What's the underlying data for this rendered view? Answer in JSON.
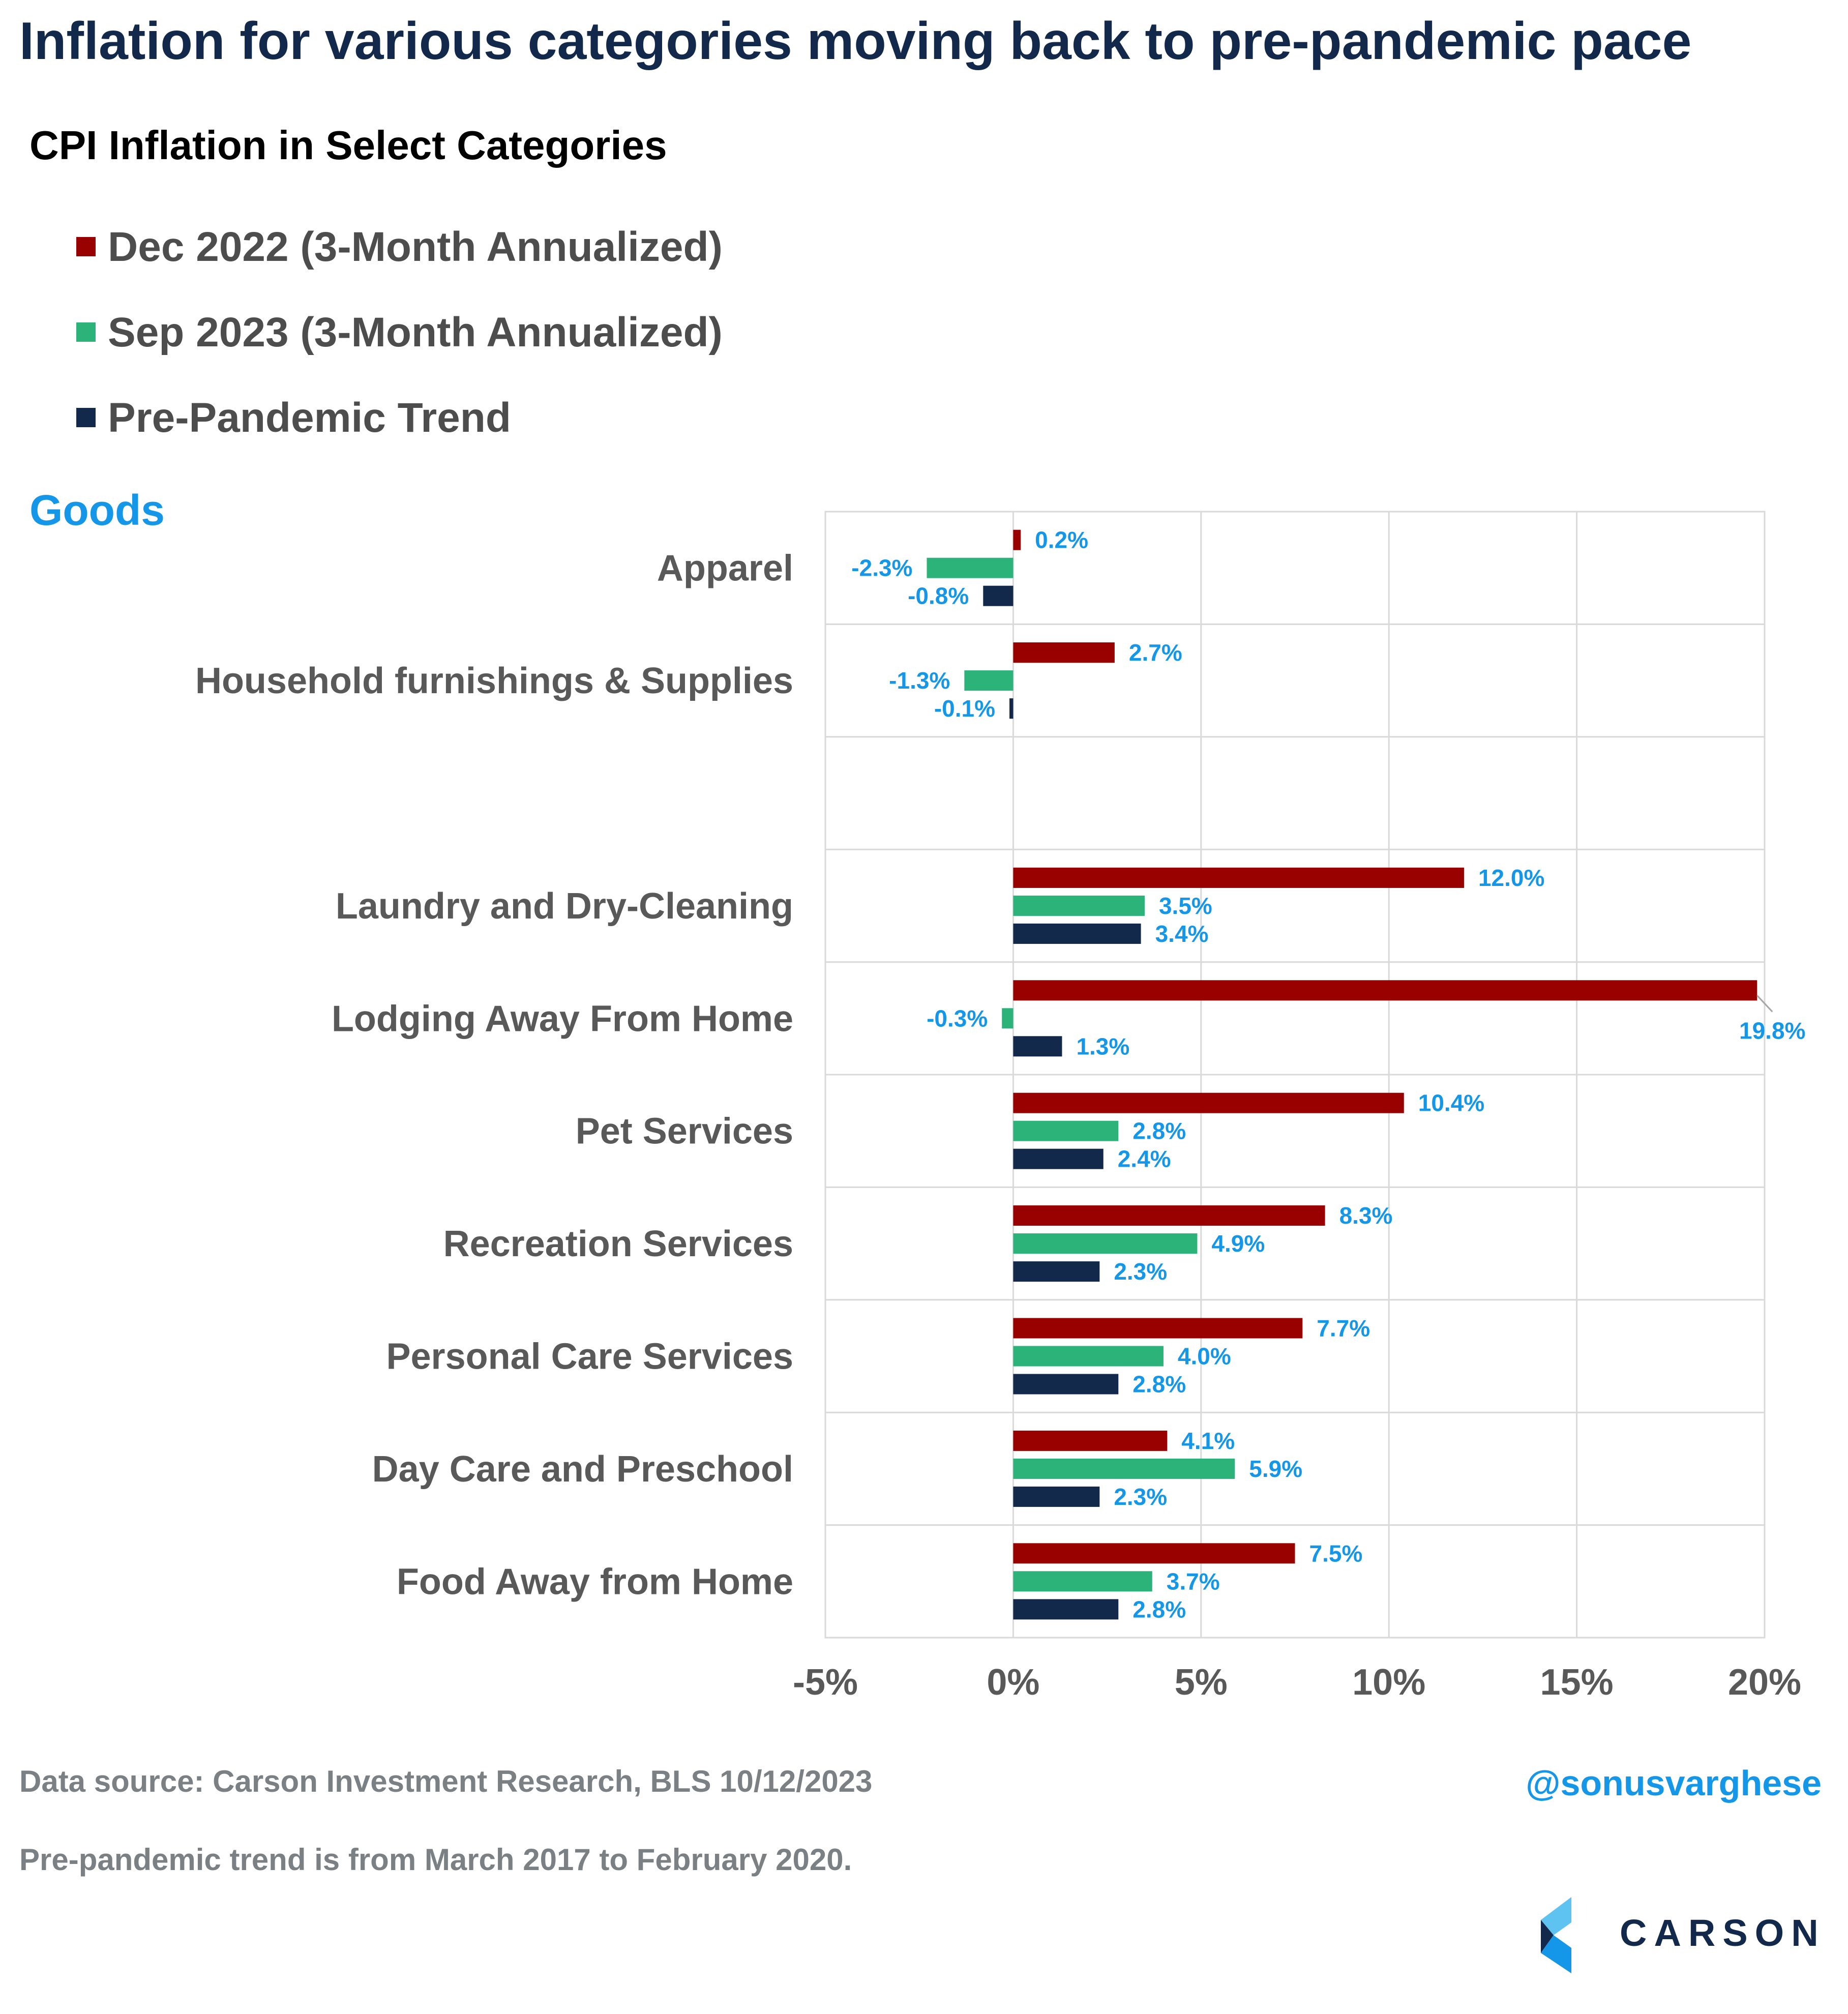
{
  "headline": "Inflation for various categories moving back to pre-pandemic pace",
  "subtitle": "CPI Inflation in Select Categories",
  "section_label": "Goods",
  "colors": {
    "dec2022": "#990000",
    "sep2023": "#2bb37a",
    "trend": "#13294b",
    "data_label": "#1497e8",
    "category_label": "#595959"
  },
  "chart_data": {
    "type": "bar",
    "orientation": "horizontal",
    "categories": [
      "Apparel",
      "Household furnishings & Supplies",
      "",
      "Laundry and Dry-Cleaning",
      "Lodging Away From Home",
      "Pet Services",
      "Recreation Services",
      "Personal Care Services",
      "Day Care and Preschool",
      "Food Away from Home"
    ],
    "series": [
      {
        "name": "Dec 2022 (3-Month Annualized)",
        "color": "#990000",
        "values": [
          0.2,
          2.7,
          null,
          12.0,
          19.8,
          10.4,
          8.3,
          7.7,
          4.1,
          7.5
        ],
        "labels": [
          "0.2%",
          "2.7%",
          "",
          "12.0%",
          "19.8%",
          "10.4%",
          "8.3%",
          "7.7%",
          "4.1%",
          "7.5%"
        ]
      },
      {
        "name": "Sep 2023 (3-Month Annualized)",
        "color": "#2bb37a",
        "values": [
          -2.3,
          -1.3,
          null,
          3.5,
          -0.3,
          2.8,
          4.9,
          4.0,
          5.9,
          3.7
        ],
        "labels": [
          "-2.3%",
          "-1.3%",
          "",
          "3.5%",
          "-0.3%",
          "2.8%",
          "4.9%",
          "4.0%",
          "5.9%",
          "3.7%"
        ]
      },
      {
        "name": "Pre-Pandemic Trend",
        "color": "#13294b",
        "values": [
          -0.8,
          -0.1,
          null,
          3.4,
          1.3,
          2.4,
          2.3,
          2.8,
          2.3,
          2.8
        ],
        "labels": [
          "-0.8%",
          "-0.1%",
          "",
          "3.4%",
          "1.3%",
          "2.4%",
          "2.3%",
          "2.8%",
          "2.3%",
          "2.8%"
        ]
      }
    ],
    "xlim": [
      -5,
      20
    ],
    "xticks": [
      -5,
      0,
      5,
      10,
      15,
      20
    ],
    "xtick_labels": [
      "-5%",
      "0%",
      "5%",
      "10%",
      "15%",
      "20%"
    ],
    "grid": true,
    "legend_position": "top-left"
  },
  "footer": {
    "source": "Data source: Carson Investment Research, BLS   10/12/2023",
    "note": "Pre-pandemic trend is from March 2017 to February 2020.",
    "handle": "@sonusvarghese",
    "logo_text": "CARSON"
  }
}
